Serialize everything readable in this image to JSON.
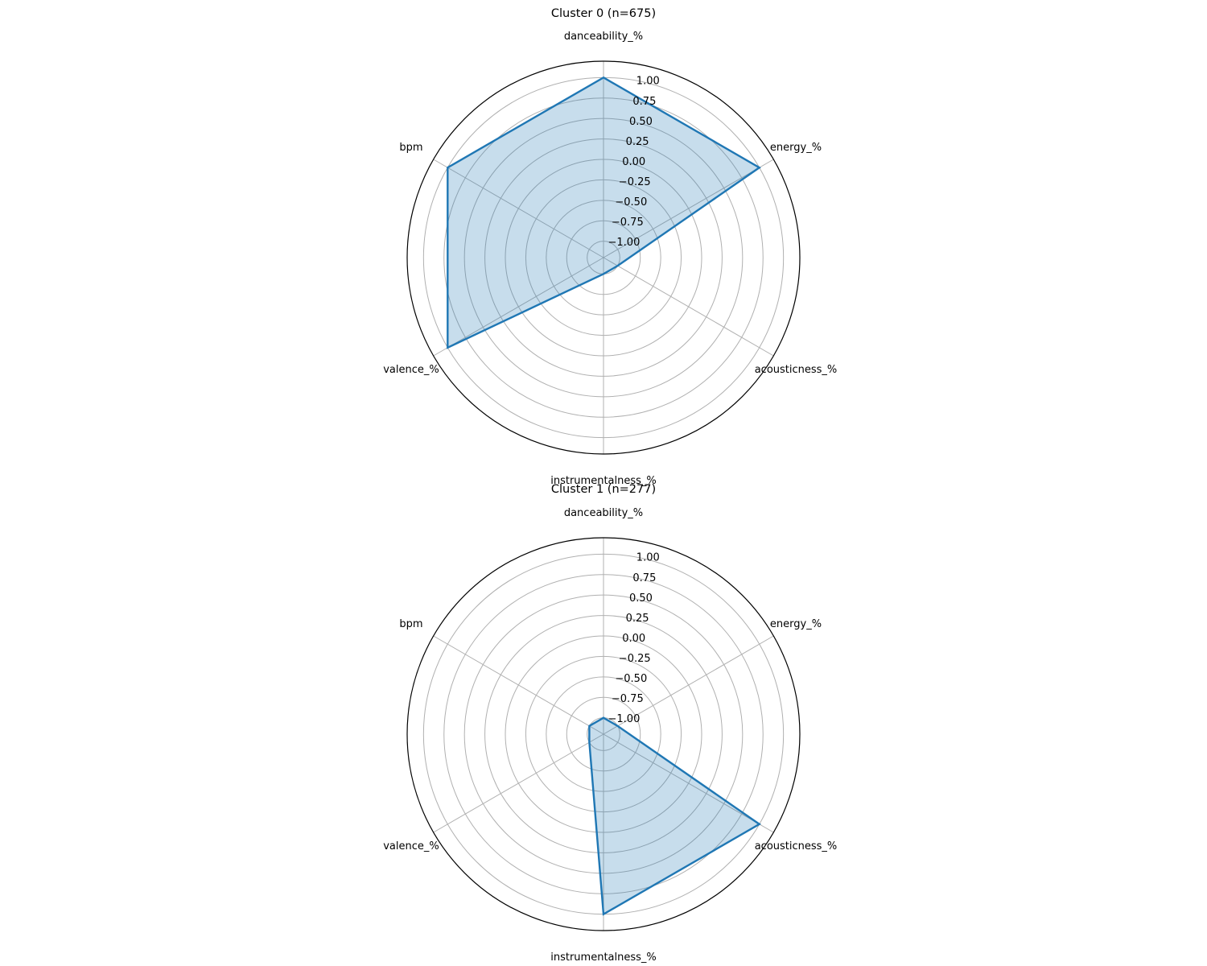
{
  "chart_data": [
    {
      "type": "radar",
      "title": "Cluster 0 (n=675)",
      "categories": [
        "danceability_%",
        "energy_%",
        "acousticness_%",
        "instrumentalness_%",
        "valence_%",
        "bpm"
      ],
      "rlim": [
        -1.2,
        1.2
      ],
      "rticks": [
        -1.0,
        -0.75,
        -0.5,
        -0.25,
        0.0,
        0.25,
        0.5,
        0.75,
        1.0
      ],
      "rtick_labels": [
        "−1.00",
        "−0.75",
        "−0.50",
        "−0.25",
        "0.00",
        "0.25",
        "0.50",
        "0.75",
        "1.00"
      ],
      "grid": true,
      "series": [
        {
          "values": [
            1.0,
            1.0,
            -1.0,
            -1.0,
            1.0,
            1.0
          ]
        }
      ]
    },
    {
      "type": "radar",
      "title": "Cluster 1 (n=277)",
      "categories": [
        "danceability_%",
        "energy_%",
        "acousticness_%",
        "instrumentalness_%",
        "valence_%",
        "bpm"
      ],
      "rlim": [
        -1.2,
        1.2
      ],
      "rticks": [
        -1.0,
        -0.75,
        -0.5,
        -0.25,
        0.0,
        0.25,
        0.5,
        0.75,
        1.0
      ],
      "rtick_labels": [
        "−1.00",
        "−0.75",
        "−0.50",
        "−0.25",
        "0.00",
        "0.25",
        "0.50",
        "0.75",
        "1.00"
      ],
      "grid": true,
      "series": [
        {
          "values": [
            -1.0,
            -1.0,
            1.0,
            1.0,
            -1.0,
            -1.0
          ]
        }
      ]
    }
  ],
  "colors": {
    "series": "#1f77b4",
    "grid": "#b0b0b0",
    "frame": "#000000",
    "background": "#ffffff"
  }
}
